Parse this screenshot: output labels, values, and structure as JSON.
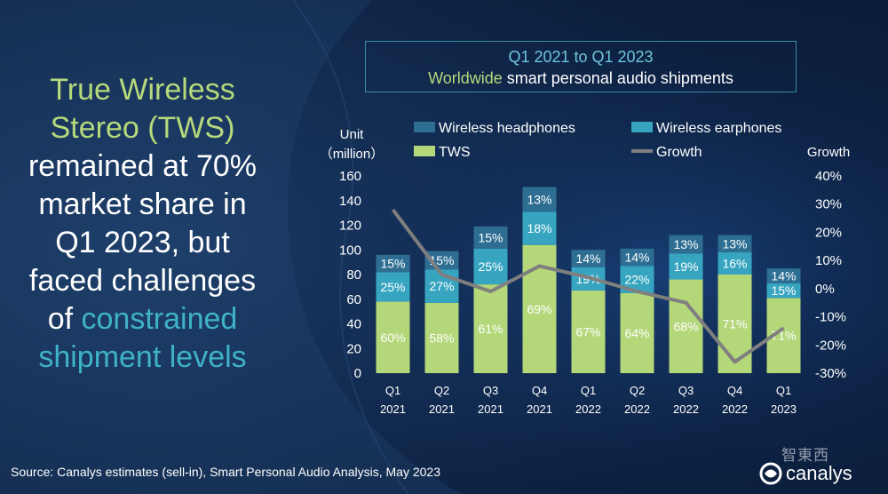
{
  "headline": {
    "part1": "True Wireless Stereo (TWS)",
    "part2": "remained at 70% market share in Q1 2023, but faced challenges of",
    "part3": "constrained shipment levels"
  },
  "title": {
    "line1": "Q1 2021 to Q1 2023",
    "line2_highlight": "Worldwide",
    "line2_rest": "smart personal audio shipments"
  },
  "source": "Source: Canalys estimates (sell-in), Smart Personal Audio Analysis, May 2023",
  "watermark": "智東西",
  "logo": {
    "text": "canalys",
    "icon": "canalys-swirl-icon"
  },
  "colors": {
    "background": "#0c1f3f",
    "headphones": "#2e6e93",
    "earphones": "#37a5c0",
    "tws": "#b4d77a",
    "growth": "#7f7f7f",
    "axis_text": "#ffffff"
  },
  "chart_data": {
    "type": "bar",
    "stacked": true,
    "categories": [
      "Q1\n2021",
      "Q2\n2021",
      "Q3\n2021",
      "Q4\n2021",
      "Q1\n2022",
      "Q2\n2022",
      "Q3\n2022",
      "Q4\n2022",
      "Q1\n2023"
    ],
    "series": [
      {
        "name": "TWS",
        "values": [
          58,
          57,
          72,
          104,
          67,
          65,
          76,
          80,
          61
        ],
        "labels": [
          "60%",
          "58%",
          "61%",
          "69%",
          "67%",
          "64%",
          "68%",
          "71%",
          "71%"
        ]
      },
      {
        "name": "Wireless earphones",
        "values": [
          24,
          27,
          29,
          27,
          19,
          22,
          21,
          18,
          12
        ],
        "labels": [
          "25%",
          "27%",
          "25%",
          "18%",
          "19%",
          "22%",
          "19%",
          "16%",
          "15%"
        ]
      },
      {
        "name": "Wireless headphones",
        "values": [
          14,
          15,
          18,
          20,
          14,
          14,
          15,
          14,
          12
        ],
        "labels": [
          "15%",
          "15%",
          "15%",
          "13%",
          "14%",
          "14%",
          "13%",
          "13%",
          "14%"
        ]
      }
    ],
    "growth": {
      "name": "Growth",
      "values": [
        28,
        5,
        -1,
        8,
        4,
        -1,
        -5,
        -26,
        -14
      ]
    },
    "ylabel": "Unit\n（million）",
    "y2label": "Growth",
    "ylim": [
      0,
      160
    ],
    "yticks": [
      0,
      20,
      40,
      60,
      80,
      100,
      120,
      140,
      160
    ],
    "y2lim": [
      -30,
      40
    ],
    "y2ticks": [
      "40%",
      "30%",
      "20%",
      "10%",
      "0%",
      "-10%",
      "-20%",
      "-30%"
    ],
    "y2tick_values": [
      40,
      30,
      20,
      10,
      0,
      -10,
      -20,
      -30
    ],
    "legend": [
      {
        "name": "Wireless headphones",
        "kind": "box"
      },
      {
        "name": "Wireless earphones",
        "kind": "box"
      },
      {
        "name": "TWS",
        "kind": "box"
      },
      {
        "name": "Growth",
        "kind": "line"
      }
    ]
  }
}
